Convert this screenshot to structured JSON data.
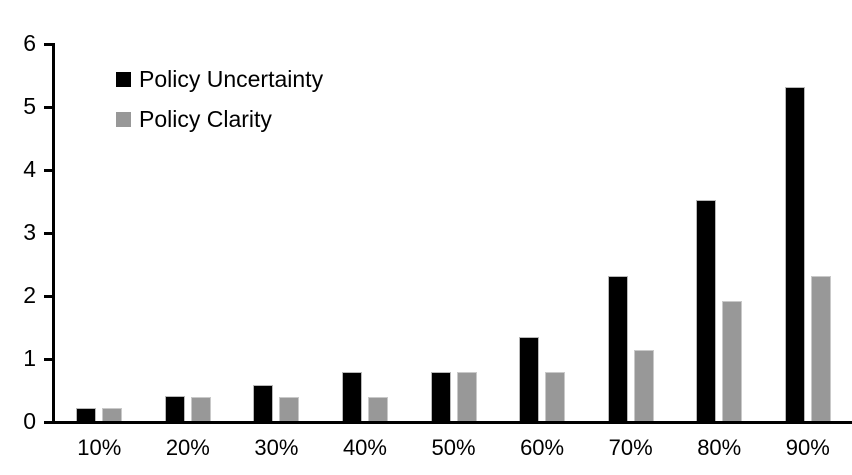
{
  "chart_data": {
    "type": "bar",
    "title": "",
    "xlabel": "",
    "ylabel": "",
    "categories": [
      "10%",
      "20%",
      "30%",
      "40%",
      "50%",
      "60%",
      "70%",
      "80%",
      "90%"
    ],
    "series": [
      {
        "name": "Policy Uncertainty",
        "color": "#000000",
        "values": [
          0.2,
          0.4,
          0.57,
          0.77,
          0.78,
          1.33,
          2.3,
          3.5,
          5.3
        ]
      },
      {
        "name": "Policy Clarity",
        "color": "#989898",
        "values": [
          0.2,
          0.38,
          0.38,
          0.38,
          0.77,
          0.77,
          1.13,
          1.9,
          2.3
        ]
      }
    ],
    "ylim": [
      0,
      6
    ],
    "yticks": [
      6,
      5,
      4,
      3,
      2,
      1,
      0
    ],
    "grid": false,
    "legend_position": "top-left"
  }
}
